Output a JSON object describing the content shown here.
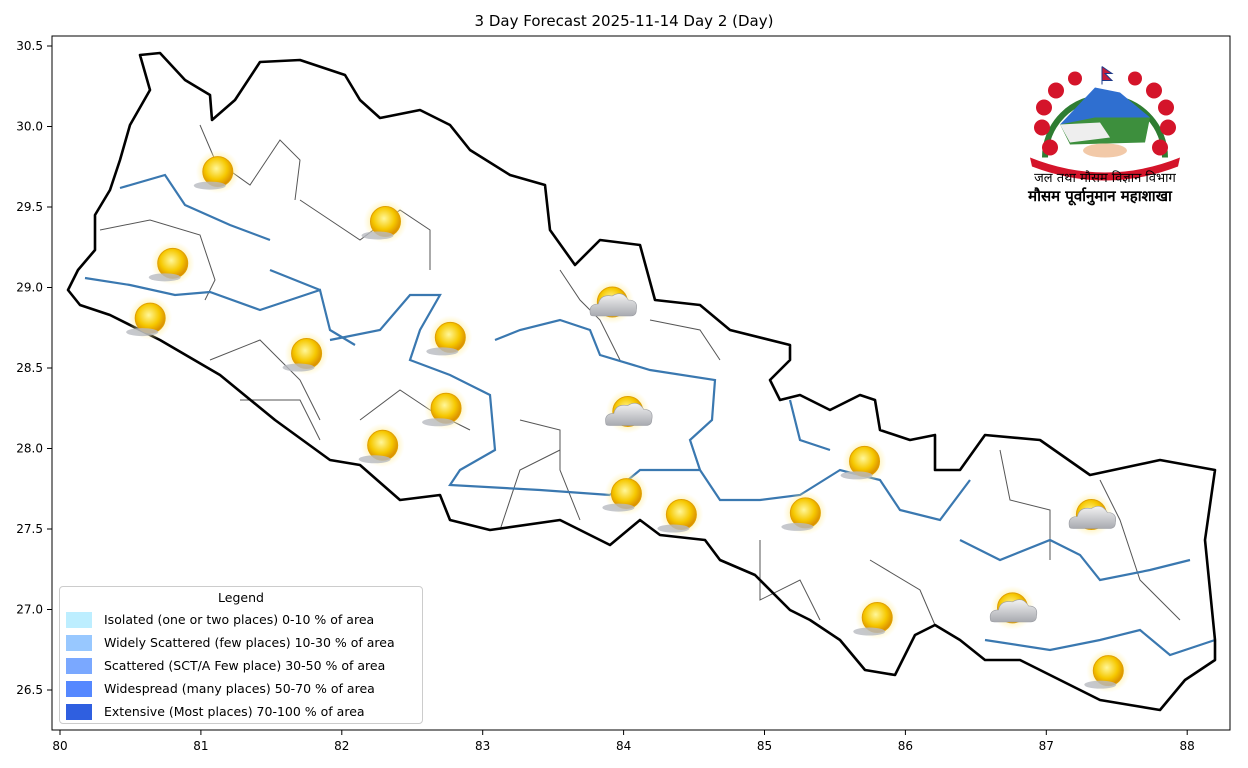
{
  "title": "3 Day Forecast 2025-11-14 Day 2 (Day)",
  "axes": {
    "x_ticks": [
      "80",
      "81",
      "82",
      "83",
      "84",
      "85",
      "86",
      "87",
      "88"
    ],
    "y_ticks": [
      "26.5",
      "27.0",
      "27.5",
      "28.0",
      "28.5",
      "29.0",
      "29.5",
      "30.0",
      "30.5"
    ],
    "xlim": [
      79.95,
      88.3
    ],
    "ylim": [
      26.38,
      30.56
    ]
  },
  "legend": {
    "title": "Legend",
    "items": [
      {
        "label": "Isolated (one or two places)  0-10 % of area",
        "color": "#bdeeff"
      },
      {
        "label": "Widely Scattered (few places)  10-30 % of area",
        "color": "#98c8ff"
      },
      {
        "label": "Scattered (SCT/A Few place)  30-50 % of area",
        "color": "#7aa8ff"
      },
      {
        "label": "Widespread (many places)  50-70 % of area",
        "color": "#5588ff"
      },
      {
        "label": "Extensive (Most places)  70-100 % of area",
        "color": "#2f5fe0"
      }
    ]
  },
  "logo": {
    "department": "जल तथा मौसम विज्ञान विभाग",
    "division": "मौसम पूर्वानुमान महाशाखा"
  },
  "colors": {
    "border": "#000000",
    "district": "#555555",
    "river": "#3a78b0"
  },
  "forecast_icons": [
    {
      "lon": 81.12,
      "lat": 29.72,
      "icon": "sunny"
    },
    {
      "lon": 82.31,
      "lat": 29.41,
      "icon": "sunny"
    },
    {
      "lon": 80.8,
      "lat": 29.15,
      "icon": "sunny"
    },
    {
      "lon": 80.64,
      "lat": 28.81,
      "icon": "sunny"
    },
    {
      "lon": 81.75,
      "lat": 28.59,
      "icon": "sunny"
    },
    {
      "lon": 82.77,
      "lat": 28.69,
      "icon": "sunny"
    },
    {
      "lon": 82.74,
      "lat": 28.25,
      "icon": "sunny"
    },
    {
      "lon": 82.29,
      "lat": 28.02,
      "icon": "sunny"
    },
    {
      "lon": 83.92,
      "lat": 28.91,
      "icon": "partly-cloudy"
    },
    {
      "lon": 84.03,
      "lat": 28.23,
      "icon": "partly-cloudy"
    },
    {
      "lon": 84.02,
      "lat": 27.72,
      "icon": "sunny"
    },
    {
      "lon": 84.41,
      "lat": 27.59,
      "icon": "sunny"
    },
    {
      "lon": 85.29,
      "lat": 27.6,
      "icon": "sunny"
    },
    {
      "lon": 85.71,
      "lat": 27.92,
      "icon": "sunny"
    },
    {
      "lon": 87.32,
      "lat": 27.59,
      "icon": "partly-cloudy"
    },
    {
      "lon": 85.8,
      "lat": 26.95,
      "icon": "sunny"
    },
    {
      "lon": 86.76,
      "lat": 27.01,
      "icon": "partly-cloudy"
    },
    {
      "lon": 87.44,
      "lat": 26.62,
      "icon": "sunny"
    }
  ]
}
